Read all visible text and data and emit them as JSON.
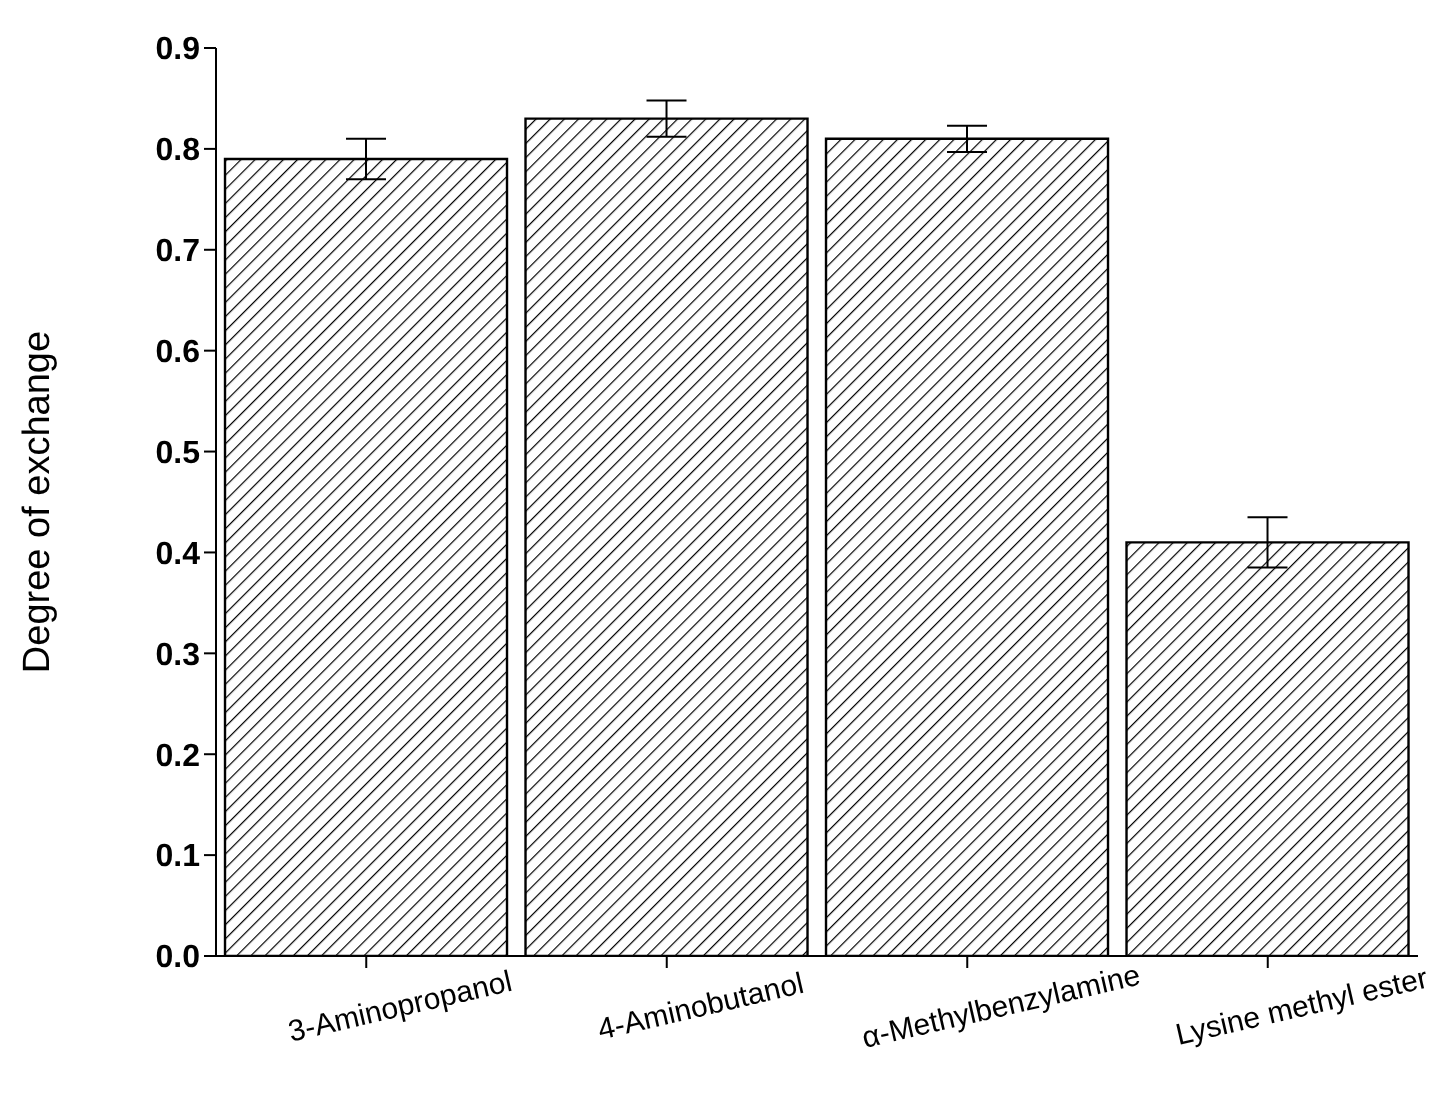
{
  "chart_data": {
    "type": "bar",
    "ylabel": "Degree of exchange",
    "categories": [
      "3-Aminopropanol",
      "4-Aminobutanol",
      "α-Methylbenzylamine",
      "Lysine methyl ester"
    ],
    "values": [
      0.79,
      0.83,
      0.81,
      0.41
    ],
    "errors": [
      0.02,
      0.018,
      0.013,
      0.025
    ],
    "color": "#000000",
    "ylim": [
      0,
      0.9
    ],
    "yticks": [
      {
        "value": 0,
        "label": "0.0"
      },
      0.1,
      0.2,
      0.3,
      0.4,
      0.5,
      0.6,
      0.7,
      0.8,
      0.9
    ],
    "grid": false,
    "legend": false
  }
}
